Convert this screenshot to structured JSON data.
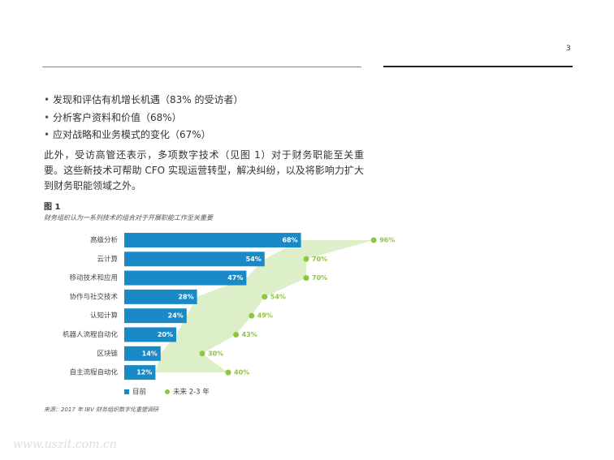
{
  "page_number": "3",
  "bullets": [
    "发现和评估有机增长机遇（83% 的受访者）",
    "分析客户资料和价值（68%）",
    "应对战略和业务模式的变化（67%）"
  ],
  "paragraph": "此外，受访高管还表示，多项数字技术（见图 1）对于财务职能至关重要。这些新技术可帮助 CFO 实现运营转型，解决纠纷，以及将影响力扩大到财务职能领域之外。",
  "figure": {
    "label": "图 1",
    "caption": "财务组织认为一系列技术的组合对于开展职能工作至关重要",
    "source": "来源：2017 年 IBV 财务组织数字化重塑调研"
  },
  "chart_data": {
    "type": "bar",
    "categories": [
      "高级分析",
      "云计算",
      "移动技术和应用",
      "协作与社交技术",
      "认知计算",
      "机器人流程自动化",
      "区块链",
      "自主流程自动化"
    ],
    "series": [
      {
        "name": "目前",
        "color": "#1a8ac6",
        "values": [
          68,
          54,
          47,
          28,
          24,
          20,
          14,
          12
        ],
        "value_labels": [
          "68%",
          "54%",
          "47%",
          "28%",
          "24%",
          "20%",
          "14%",
          "12%"
        ]
      },
      {
        "name": "未来 2-3 年",
        "color": "#8dc63f",
        "values": [
          96,
          70,
          70,
          54,
          49,
          43,
          30,
          40
        ],
        "value_labels": [
          "96%",
          "70%",
          "70%",
          "54%",
          "49%",
          "43%",
          "30%",
          "40%"
        ]
      }
    ],
    "xlim": [
      0,
      100
    ]
  },
  "watermark": "www.uszit.com.cn"
}
